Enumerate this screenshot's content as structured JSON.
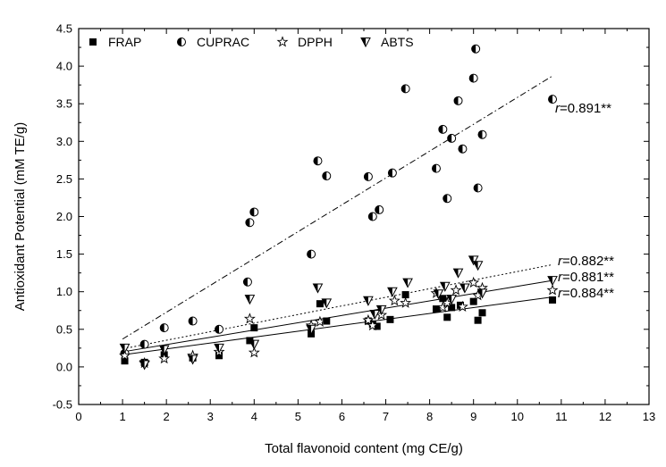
{
  "chart_data": {
    "type": "scatter",
    "xlabel": "Total flavonoid content (mg CE/g)",
    "ylabel": "Antioxidant Potential (mM TE/g)",
    "xlim": [
      0,
      13
    ],
    "ylim": [
      -0.5,
      4.5
    ],
    "xticks": [
      "0",
      "1",
      "2",
      "3",
      "4",
      "5",
      "6",
      "7",
      "8",
      "9",
      "10",
      "11",
      "12",
      "13"
    ],
    "yticks": [
      "-0.5",
      "0.0",
      "0.5",
      "1.0",
      "1.5",
      "2.0",
      "2.5",
      "3.0",
      "3.5",
      "4.0",
      "4.5"
    ],
    "grid": false,
    "legend_position": "top",
    "series": [
      {
        "name": "FRAP",
        "marker": "filled-square",
        "trend_label": "=0.884**",
        "trend_style": "solid",
        "trend": [
          [
            1.0,
            0.16
          ],
          [
            10.8,
            0.93
          ]
        ],
        "points": [
          [
            1.05,
            0.08
          ],
          [
            1.5,
            0.06
          ],
          [
            1.95,
            0.16
          ],
          [
            2.6,
            0.12
          ],
          [
            3.2,
            0.15
          ],
          [
            3.9,
            0.35
          ],
          [
            4.0,
            0.52
          ],
          [
            5.3,
            0.44
          ],
          [
            5.5,
            0.84
          ],
          [
            5.65,
            0.61
          ],
          [
            6.6,
            0.61
          ],
          [
            6.7,
            0.57
          ],
          [
            6.8,
            0.54
          ],
          [
            7.1,
            0.63
          ],
          [
            7.45,
            0.96
          ],
          [
            8.15,
            0.77
          ],
          [
            8.3,
            0.91
          ],
          [
            8.4,
            0.66
          ],
          [
            8.5,
            0.79
          ],
          [
            8.7,
            0.82
          ],
          [
            9.0,
            0.87
          ],
          [
            9.1,
            0.62
          ],
          [
            9.2,
            0.72
          ],
          [
            10.8,
            0.89
          ]
        ]
      },
      {
        "name": "CUPRAC",
        "marker": "half-circle",
        "trend_label": "=0.891**",
        "trend_style": "dashdot",
        "trend": [
          [
            1.0,
            0.37
          ],
          [
            10.8,
            3.87
          ]
        ],
        "points": [
          [
            1.05,
            0.18
          ],
          [
            1.5,
            0.3
          ],
          [
            1.95,
            0.52
          ],
          [
            2.6,
            0.61
          ],
          [
            3.2,
            0.5
          ],
          [
            3.85,
            1.13
          ],
          [
            3.9,
            1.92
          ],
          [
            4.0,
            2.06
          ],
          [
            5.3,
            1.5
          ],
          [
            5.45,
            2.74
          ],
          [
            5.65,
            2.54
          ],
          [
            6.6,
            2.53
          ],
          [
            6.7,
            2.0
          ],
          [
            6.85,
            2.09
          ],
          [
            7.15,
            2.58
          ],
          [
            7.45,
            3.7
          ],
          [
            8.15,
            2.64
          ],
          [
            8.3,
            3.16
          ],
          [
            8.4,
            2.24
          ],
          [
            8.5,
            3.04
          ],
          [
            8.65,
            3.54
          ],
          [
            8.75,
            2.9
          ],
          [
            9.0,
            3.84
          ],
          [
            9.05,
            4.23
          ],
          [
            9.1,
            2.38
          ],
          [
            9.2,
            3.09
          ],
          [
            10.8,
            3.56
          ]
        ]
      },
      {
        "name": "DPPH",
        "marker": "open-star",
        "trend_label": "=0.881**",
        "trend_style": "solid",
        "trend": [
          [
            1.0,
            0.2
          ],
          [
            10.8,
            1.15
          ]
        ],
        "points": [
          [
            1.05,
            0.15
          ],
          [
            1.5,
            0.05
          ],
          [
            1.95,
            0.11
          ],
          [
            2.6,
            0.15
          ],
          [
            3.2,
            0.2
          ],
          [
            3.9,
            0.64
          ],
          [
            4.0,
            0.19
          ],
          [
            5.3,
            0.55
          ],
          [
            5.5,
            0.6
          ],
          [
            6.6,
            0.62
          ],
          [
            6.7,
            0.55
          ],
          [
            6.9,
            0.69
          ],
          [
            7.2,
            0.88
          ],
          [
            7.45,
            0.85
          ],
          [
            8.15,
            0.98
          ],
          [
            8.3,
            0.79
          ],
          [
            8.4,
            0.85
          ],
          [
            8.6,
            1.02
          ],
          [
            8.75,
            0.8
          ],
          [
            9.0,
            1.12
          ],
          [
            9.1,
            0.95
          ],
          [
            9.2,
            1.05
          ],
          [
            10.8,
            1.02
          ]
        ]
      },
      {
        "name": "ABTS",
        "marker": "half-triangle",
        "trend_label": "=0.882**",
        "trend_style": "dotted",
        "trend": [
          [
            1.0,
            0.24
          ],
          [
            10.8,
            1.36
          ]
        ],
        "points": [
          [
            1.05,
            0.25
          ],
          [
            1.5,
            0.03
          ],
          [
            1.95,
            0.23
          ],
          [
            2.6,
            0.1
          ],
          [
            3.2,
            0.25
          ],
          [
            3.9,
            0.9
          ],
          [
            4.0,
            0.3
          ],
          [
            5.3,
            0.5
          ],
          [
            5.45,
            1.05
          ],
          [
            5.65,
            0.85
          ],
          [
            6.6,
            0.88
          ],
          [
            6.75,
            0.7
          ],
          [
            6.9,
            0.76
          ],
          [
            7.15,
            1.0
          ],
          [
            7.5,
            1.12
          ],
          [
            8.2,
            0.97
          ],
          [
            8.35,
            1.07
          ],
          [
            8.5,
            0.9
          ],
          [
            8.65,
            1.25
          ],
          [
            8.8,
            1.05
          ],
          [
            9.0,
            1.42
          ],
          [
            9.1,
            1.35
          ],
          [
            9.2,
            0.98
          ],
          [
            10.8,
            1.15
          ]
        ]
      }
    ],
    "r_symbol": "r"
  }
}
